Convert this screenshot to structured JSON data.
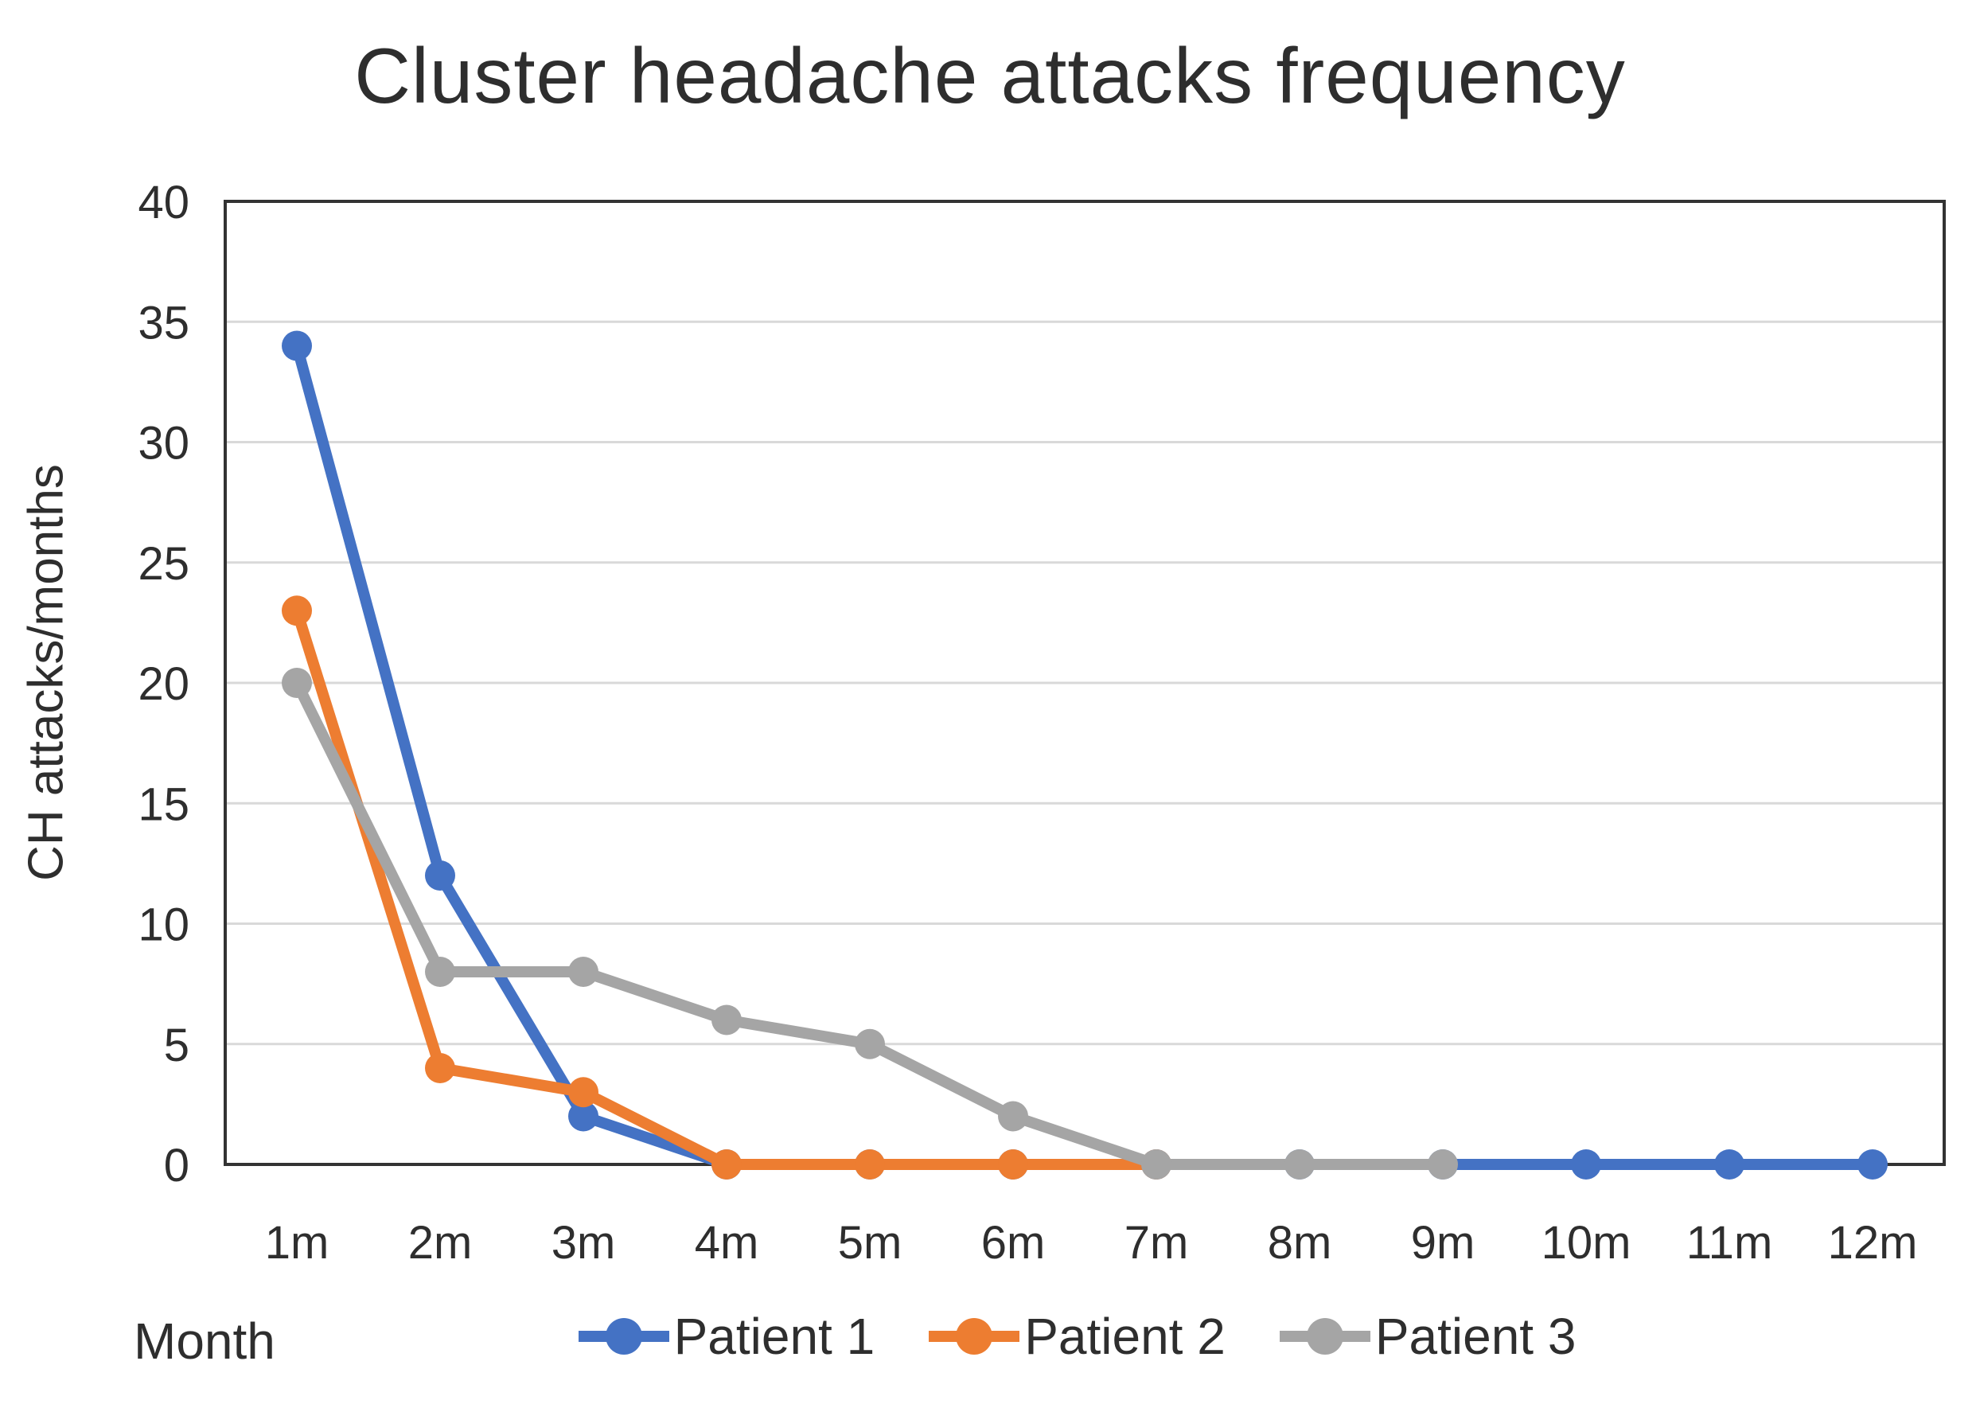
{
  "chart_data": {
    "type": "line",
    "title": "Cluster headache attacks frequency",
    "xlabel": "Month",
    "ylabel": "CH attacks/months",
    "categories": [
      "1m",
      "2m",
      "3m",
      "4m",
      "5m",
      "6m",
      "7m",
      "8m",
      "9m",
      "10m",
      "11m",
      "12m"
    ],
    "ylim": [
      0,
      40
    ],
    "yticks": [
      0,
      5,
      10,
      15,
      20,
      25,
      30,
      35,
      40
    ],
    "grid": true,
    "legend_position": "bottom",
    "series": [
      {
        "name": "Patient 1",
        "color": "#4472C4",
        "values": [
          34,
          12,
          2,
          0,
          0,
          0,
          0,
          0,
          0,
          0,
          0,
          0
        ]
      },
      {
        "name": "Patient 2",
        "color": "#ED7D31",
        "values": [
          23,
          4,
          3,
          0,
          0,
          0,
          0
        ]
      },
      {
        "name": "Patient 3",
        "color": "#A5A5A5",
        "values": [
          20,
          8,
          8,
          6,
          5,
          2,
          0,
          0,
          0
        ]
      }
    ]
  },
  "style": {
    "background": "#FFFFFF",
    "text_color": "#2E2E2E",
    "grid_color": "#D9D9D9",
    "axis_color": "#333333"
  }
}
